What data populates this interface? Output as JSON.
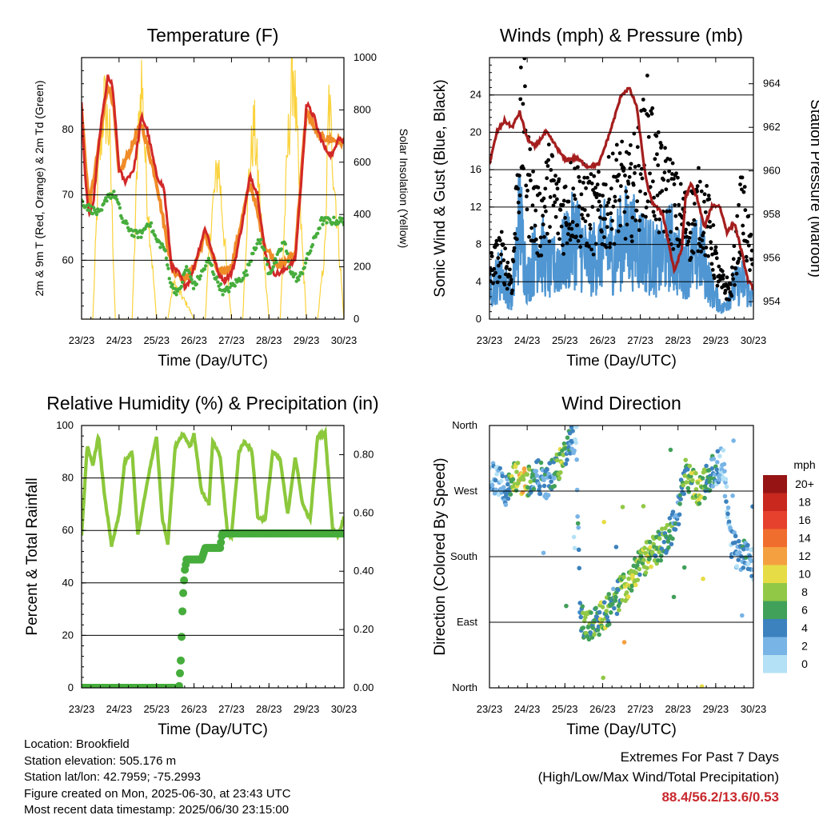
{
  "chart_data": [
    {
      "type": "line",
      "title": "Temperature (F)",
      "xlabel": "Time (Day/UTC)",
      "ylabel": "2m & 9m T (Red, Orange) & 2m Td (Green)",
      "ylabel_right": "Solar Insolation (Yellow)",
      "x_ticks": [
        "23/23",
        "24/23",
        "25/23",
        "26/23",
        "27/23",
        "28/23",
        "29/23",
        "30/23"
      ],
      "ylim": [
        51,
        91
      ],
      "y_ticks": [
        60,
        70,
        80
      ],
      "ylim_right": [
        0,
        1000
      ],
      "y_ticks_right": [
        0,
        200,
        400,
        600,
        800,
        1000
      ],
      "grid": "horizontal",
      "colors": {
        "t2m": "#d22828",
        "t9m": "#f08c28",
        "td2m": "#46ad3c",
        "solar": "#fad23c"
      },
      "series": [
        {
          "name": "2m T",
          "axis": "left",
          "color": "#d22828",
          "x": [
            0,
            0.1,
            0.2,
            0.3,
            0.5,
            0.7,
            0.8,
            0.85,
            1.0,
            1.15,
            1.4,
            1.6,
            1.75,
            2.0,
            2.2,
            2.4,
            2.6,
            2.75,
            2.9,
            3.0,
            3.3,
            3.5,
            3.65,
            3.8,
            4.0,
            4.1,
            4.3,
            4.5,
            4.7,
            4.9,
            5.1,
            5.3,
            5.5,
            5.7,
            5.9,
            6.0,
            6.2,
            6.3,
            6.5,
            6.7,
            6.85,
            7.0
          ],
          "y": [
            84,
            72,
            67,
            68,
            80,
            88,
            87,
            85,
            74,
            72,
            74,
            82,
            80,
            73,
            71,
            59,
            58,
            56,
            57,
            59,
            65,
            61,
            58,
            57,
            58,
            60,
            66,
            73,
            70,
            61,
            58,
            58,
            59,
            60,
            75,
            84,
            82,
            80,
            77,
            76,
            79,
            78
          ]
        },
        {
          "name": "9m T",
          "axis": "left",
          "color": "#f08c28",
          "x": [
            0,
            0.2,
            0.5,
            0.7,
            0.85,
            1.0,
            1.6,
            2.0,
            2.4,
            2.75,
            3.0,
            3.3,
            3.65,
            4.0,
            4.5,
            4.9,
            5.3,
            5.7,
            6.0,
            6.3,
            7.0
          ],
          "y": [
            83,
            68,
            79,
            87,
            84,
            73,
            81,
            72,
            59,
            57,
            59,
            64,
            58,
            59,
            72,
            62,
            59,
            61,
            83,
            79,
            78
          ]
        },
        {
          "name": "2m Td",
          "axis": "left",
          "color": "#46ad3c",
          "x": [
            0,
            0.2,
            0.5,
            0.7,
            0.9,
            1.1,
            1.4,
            1.6,
            1.8,
            2.0,
            2.2,
            2.4,
            2.6,
            2.8,
            3.0,
            3.2,
            3.4,
            3.6,
            3.8,
            4.0,
            4.2,
            4.4,
            4.6,
            4.8,
            5.0,
            5.2,
            5.4,
            5.6,
            5.8,
            6.0,
            6.2,
            6.4,
            7.0
          ],
          "y": [
            69,
            68,
            67,
            70,
            70,
            66,
            64,
            64,
            66,
            63,
            62,
            56,
            55,
            59,
            56,
            58,
            60,
            57,
            55,
            56,
            57,
            58,
            62,
            63,
            58,
            60,
            63,
            58,
            57,
            60,
            63,
            66,
            66
          ]
        },
        {
          "name": "Solar Insolation",
          "axis": "right",
          "color": "#fad23c",
          "x": [
            0,
            0.3,
            0.45,
            0.6,
            0.75,
            0.9,
            1.1,
            1.35,
            1.5,
            1.6,
            1.75,
            2.0,
            2.3,
            2.45,
            2.65,
            2.85,
            3.0,
            3.3,
            3.45,
            3.65,
            3.85,
            4.0,
            4.3,
            4.45,
            4.6,
            4.85,
            5.0,
            5.3,
            5.5,
            5.65,
            5.85,
            6.0,
            6.3,
            6.5,
            6.6,
            6.8,
            7.0
          ],
          "y": [
            0,
            0,
            600,
            900,
            750,
            0,
            0,
            0,
            700,
            1000,
            500,
            0,
            0,
            150,
            100,
            50,
            0,
            0,
            400,
            650,
            250,
            0,
            0,
            550,
            800,
            300,
            0,
            0,
            700,
            1060,
            400,
            0,
            0,
            300,
            900,
            450,
            0
          ]
        }
      ]
    },
    {
      "type": "scatter",
      "title": "Winds (mph) & Pressure (mb)",
      "xlabel": "Time (Day/UTC)",
      "ylabel": "Sonic Wind & Gust (Blue, Black)",
      "ylabel_right": "Station Pressure (Maroon)",
      "x_ticks": [
        "23/23",
        "24/23",
        "25/23",
        "26/23",
        "27/23",
        "28/23",
        "29/23",
        "30/23"
      ],
      "ylim": [
        0,
        28
      ],
      "y_ticks": [
        0,
        4,
        8,
        12,
        16,
        20,
        24
      ],
      "ylim_right": [
        953.2,
        965.2
      ],
      "y_ticks_right": [
        954,
        956,
        958,
        960,
        962,
        964
      ],
      "grid": "horizontal",
      "colors": {
        "wind": "#4f96d2",
        "gust": "#000000",
        "pressure": "#a51e1e"
      },
      "series": [
        {
          "name": "Sonic Wind",
          "axis": "left",
          "color": "#4f96d2",
          "x": [
            0,
            0.3,
            0.6,
            0.8,
            1.0,
            1.3,
            1.6,
            2.0,
            2.3,
            2.6,
            2.9,
            3.0,
            3.3,
            3.6,
            3.9,
            4.2,
            4.5,
            4.8,
            5.0,
            5.3,
            5.6,
            5.9,
            6.2,
            6.4,
            6.7,
            7.0
          ],
          "y": [
            3,
            5,
            2,
            11,
            4,
            8,
            5,
            7,
            9,
            6,
            7,
            8,
            7,
            9,
            8,
            7,
            6,
            8,
            6,
            6,
            7,
            3,
            1,
            3,
            4,
            2
          ]
        },
        {
          "name": "Gust",
          "axis": "left",
          "color": "#000000",
          "x": [
            0,
            0.3,
            0.6,
            0.8,
            0.9,
            1.0,
            1.3,
            1.6,
            1.9,
            2.2,
            2.5,
            2.8,
            3.1,
            3.4,
            3.7,
            4.0,
            4.2,
            4.5,
            4.8,
            5.0,
            5.3,
            5.6,
            5.8,
            6.1,
            6.4,
            6.7,
            7.0
          ],
          "y": [
            5,
            7,
            4,
            18,
            22,
            15,
            10,
            14,
            11,
            13,
            12,
            11,
            12,
            14,
            13,
            16,
            19,
            14,
            13,
            11,
            10,
            12,
            10,
            4,
            3,
            12,
            5
          ]
        },
        {
          "name": "Station Pressure",
          "axis": "right",
          "color": "#a51e1e",
          "x": [
            0,
            0.2,
            0.4,
            0.6,
            0.8,
            1.0,
            1.2,
            1.5,
            1.7,
            2.0,
            2.3,
            2.6,
            2.9,
            3.2,
            3.5,
            3.7,
            3.9,
            4.0,
            4.15,
            4.3,
            4.6,
            4.9,
            5.1,
            5.2,
            5.35,
            5.5,
            5.7,
            5.9,
            6.1,
            6.3,
            6.5,
            6.7,
            6.85,
            7.0
          ],
          "y": [
            960.3,
            961.8,
            962.3,
            962.0,
            962.7,
            961.5,
            961.1,
            961.8,
            961.3,
            960.5,
            960.6,
            960.2,
            960.3,
            961.8,
            963.5,
            963.8,
            963.0,
            961.6,
            959.6,
            958.6,
            958.0,
            955.4,
            956.4,
            958.8,
            959.4,
            958.8,
            957.4,
            958.4,
            958.4,
            957.2,
            957.6,
            956.2,
            955.0,
            954.6
          ]
        }
      ]
    },
    {
      "type": "line",
      "title": "Relative Humidity (%) & Precipitation (in)",
      "xlabel": "Time (Day/UTC)",
      "ylabel": "Percent & Total Rainfall",
      "x_ticks": [
        "23/23",
        "24/23",
        "25/23",
        "26/23",
        "27/23",
        "28/23",
        "29/23",
        "30/23"
      ],
      "ylim": [
        0,
        100
      ],
      "y_ticks": [
        0,
        20,
        40,
        60,
        80,
        100
      ],
      "ylim_right": [
        0,
        0.9
      ],
      "y_ticks_right": [
        "0.00",
        "0.20",
        "0.40",
        "0.60",
        "0.80"
      ],
      "grid": "horizontal",
      "colors": {
        "rh": "#8cc83c",
        "precip": "#46ad3c"
      },
      "series": [
        {
          "name": "Relative Humidity",
          "axis": "left",
          "color": "#8cc83c",
          "x": [
            0,
            0.15,
            0.3,
            0.45,
            0.6,
            0.8,
            1.0,
            1.15,
            1.35,
            1.5,
            1.65,
            1.8,
            2.0,
            2.15,
            2.3,
            2.5,
            2.7,
            2.9,
            3.0,
            3.2,
            3.4,
            3.5,
            3.7,
            3.9,
            4.0,
            4.2,
            4.35,
            4.55,
            4.7,
            4.9,
            5.1,
            5.3,
            5.5,
            5.7,
            5.9,
            6.1,
            6.3,
            6.5,
            6.7,
            6.85,
            7.0
          ],
          "y": [
            58,
            92,
            85,
            96,
            75,
            54,
            66,
            86,
            90,
            58,
            70,
            82,
            96,
            65,
            55,
            92,
            97,
            92,
            97,
            75,
            70,
            94,
            88,
            58,
            58,
            90,
            94,
            90,
            65,
            64,
            90,
            87,
            66,
            88,
            70,
            64,
            96,
            97,
            60,
            58,
            65
          ]
        },
        {
          "name": "Total Precipitation",
          "axis": "right",
          "color": "#46ad3c",
          "x": [
            0,
            2.6,
            2.65,
            2.7,
            2.75,
            2.8,
            2.9,
            3.2,
            3.3,
            3.7,
            3.75,
            7.0
          ],
          "y": [
            0,
            0,
            0.1,
            0.3,
            0.4,
            0.44,
            0.44,
            0.44,
            0.48,
            0.48,
            0.53,
            0.53
          ]
        }
      ]
    },
    {
      "type": "scatter",
      "title": "Wind Direction",
      "xlabel": "Time (Day/UTC)",
      "ylabel": "Direction (Colored By Speed)",
      "x_ticks": [
        "23/23",
        "24/23",
        "25/23",
        "26/23",
        "27/23",
        "28/23",
        "29/23",
        "30/23"
      ],
      "y_ticks": [
        "North",
        "East",
        "South",
        "West",
        "North"
      ],
      "ylim": [
        0,
        360
      ],
      "grid": "horizontal",
      "colorbar": {
        "title": "mph",
        "labels": [
          "20+",
          "18",
          "16",
          "14",
          "12",
          "10",
          "8",
          "6",
          "4",
          "2",
          "0"
        ],
        "colors": [
          "#961414",
          "#c8281e",
          "#e6412d",
          "#f06e2d",
          "#f5a040",
          "#e6dc46",
          "#91c846",
          "#41a05a",
          "#3c82be",
          "#78b4e6",
          "#b4e1f5"
        ]
      },
      "series": [
        {
          "name": "Direction",
          "x": [
            0,
            0.3,
            0.5,
            0.7,
            0.9,
            1.1,
            1.3,
            1.5,
            1.7,
            1.9,
            2.1,
            2.3,
            2.4,
            2.6,
            2.8,
            3.0,
            3.2,
            3.4,
            3.6,
            3.8,
            4.0,
            4.2,
            4.4,
            4.6,
            4.8,
            5.0,
            5.2,
            5.4,
            5.6,
            5.8,
            6.0,
            6.2,
            6.4,
            6.6,
            6.8,
            7.0
          ],
          "y": [
            290,
            280,
            270,
            290,
            285,
            285,
            290,
            280,
            295,
            310,
            330,
            350,
            95,
            88,
            90,
            100,
            110,
            125,
            140,
            155,
            170,
            180,
            190,
            200,
            215,
            240,
            300,
            280,
            270,
            290,
            300,
            310,
            200,
            180,
            190,
            170
          ],
          "speed": [
            3,
            3,
            6,
            10,
            12,
            6,
            4,
            4,
            6,
            9,
            5,
            2,
            6,
            8,
            7,
            9,
            6,
            7,
            10,
            9,
            8,
            10,
            8,
            7,
            6,
            4,
            7,
            8,
            9,
            6,
            4,
            2,
            2,
            4,
            4,
            3
          ]
        }
      ]
    }
  ],
  "info": {
    "location": "Location: Brookfield",
    "elevation": "Station elevation: 505.176 m",
    "latlon": "Station lat/lon: 42.7959; -75.2993",
    "created": "Figure created on Mon, 2025-06-30, at 23:43 UTC",
    "timestamp": "Most recent data timestamp: 2025/06/30 23:15:00"
  },
  "extremes": {
    "heading": "Extremes For Past 7 Days",
    "subheading": "(High/Low/Max Wind/Total Precipitation)",
    "values": "88.4/56.2/13.6/0.53"
  }
}
